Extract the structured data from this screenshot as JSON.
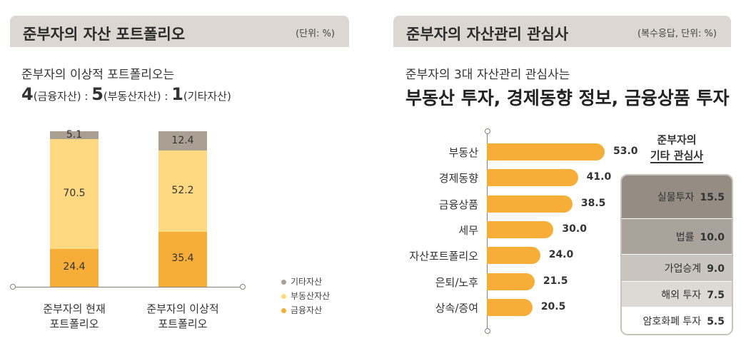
{
  "left_panel": {
    "title": "준부자의 자산 포트폴리오",
    "unit": "(단위: %)",
    "subtitle": "준부자의 이상적 포트폴리오는",
    "ratio": {
      "n1": "4",
      "l1": "(금융자산)",
      "sep1": " : ",
      "n2": "5",
      "l2": "(부동산자산)",
      "sep2": " : ",
      "n3": "1",
      "l3": "(기타자산)"
    }
  },
  "right_panel": {
    "title": "준부자의 자산관리 관심사",
    "unit": "(복수응답, 단위: %)",
    "subtitle": "준부자의 3대 자산관리 관심사는",
    "headline": "부동산 투자, 경제동향 정보, 금융상품 투자"
  },
  "colors": {
    "financial": "#f7ae38",
    "realestate": "#fed981",
    "other": "#a9a093",
    "hbar": "#f7ae38",
    "axis": "#8a7f74"
  },
  "chart_data": [
    {
      "type": "bar",
      "stacked": true,
      "categories": [
        "준부자의 현재\n포트폴리오",
        "준부자의 이상적\n포트폴리오"
      ],
      "series": [
        {
          "name": "금융자산",
          "values": [
            24.4,
            35.4
          ]
        },
        {
          "name": "부동산자산",
          "values": [
            70.5,
            52.2
          ]
        },
        {
          "name": "기타자산",
          "values": [
            5.1,
            12.4
          ]
        }
      ],
      "ylim": [
        0,
        100
      ],
      "legend": "bottom-right"
    },
    {
      "type": "bar",
      "orientation": "horizontal",
      "categories": [
        "부동산",
        "경제동향",
        "금융상품",
        "세무",
        "자산포트폴리오",
        "은퇴/노후",
        "상속/증여"
      ],
      "values": [
        53.0,
        41.0,
        38.5,
        30.0,
        24.0,
        21.5,
        20.5
      ],
      "labels": [
        "53.0",
        "41.0",
        "38.5",
        "30.0",
        "24.0",
        "21.5",
        "20.5"
      ]
    },
    {
      "type": "table",
      "title": "준부자의\n기타 관심사",
      "rows": [
        {
          "label": "실물투자",
          "value": "15.5",
          "num": 15.5,
          "color": "#958c83"
        },
        {
          "label": "법률",
          "value": "10.0",
          "num": 10.0,
          "color": "#aaa39b"
        },
        {
          "label": "가업승계",
          "value": "9.0",
          "num": 9.0,
          "color": "#c9c4be"
        },
        {
          "label": "해외 투자",
          "value": "7.5",
          "num": 7.5,
          "color": "#ddd9d4"
        },
        {
          "label": "암호화폐 투자",
          "value": "5.5",
          "num": 5.5,
          "color": "#ffffff"
        }
      ]
    }
  ]
}
